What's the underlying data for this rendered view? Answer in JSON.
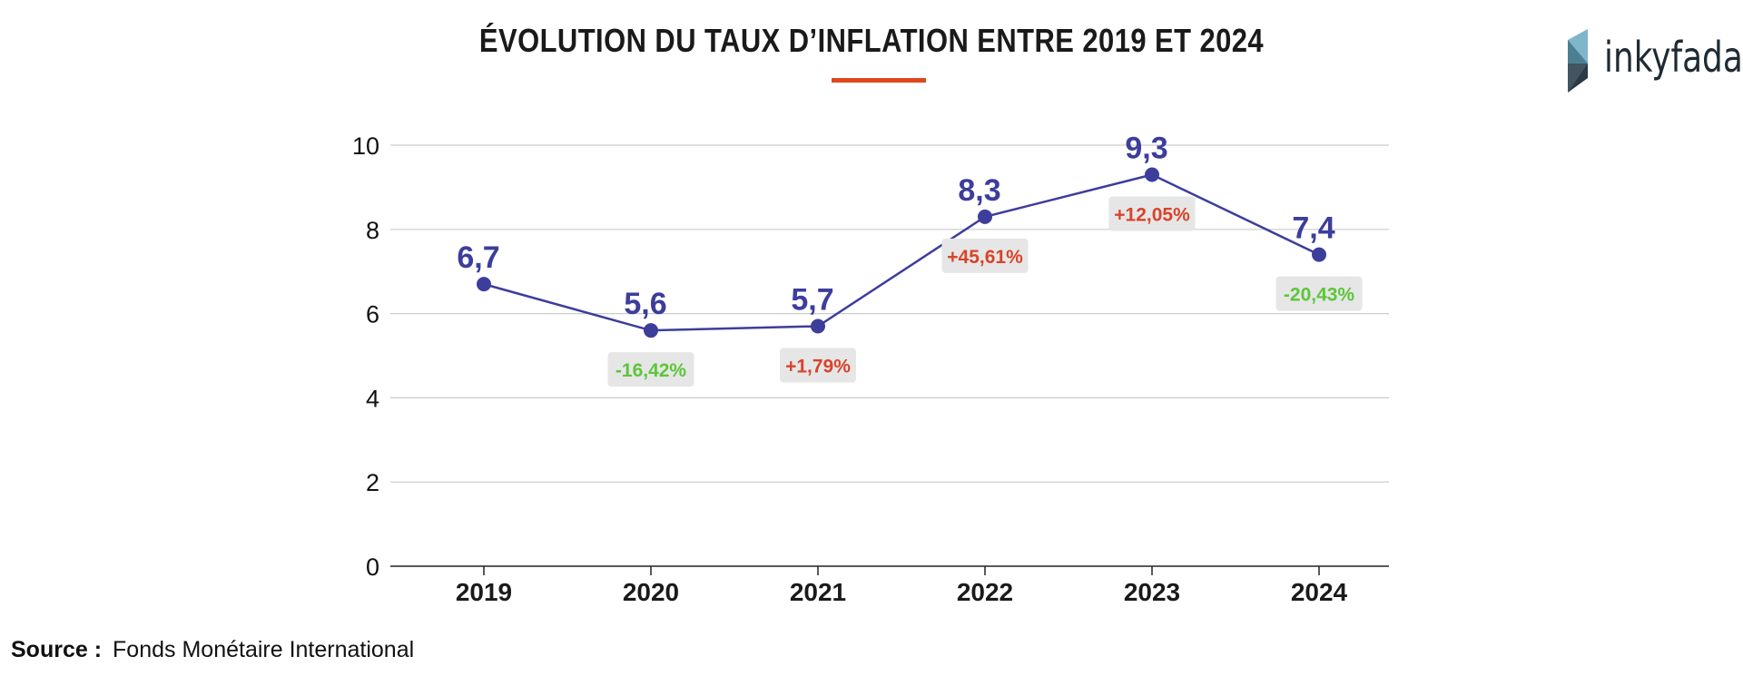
{
  "title": "ÉVOLUTION DU TAUX D’INFLATION ENTRE 2019 ET 2024",
  "logo": {
    "text": "inkyfada",
    "icon": "inkyfada-logo-icon"
  },
  "source": {
    "label": "Source :",
    "text": "Fonds Monétaire International"
  },
  "colors": {
    "line": "#3d3d9c",
    "increase": "#d9432a",
    "decrease": "#5cc63a",
    "badge": "#e6e6e6",
    "accent": "#e0471c",
    "grid": "#cccccc"
  },
  "chart_data": {
    "type": "line",
    "categories": [
      "2019",
      "2020",
      "2021",
      "2022",
      "2023",
      "2024"
    ],
    "values": [
      6.7,
      5.6,
      5.7,
      8.3,
      9.3,
      7.4
    ],
    "value_labels": [
      "6,7",
      "5,6",
      "5,7",
      "8,3",
      "9,3",
      "7,4"
    ],
    "changes": [
      null,
      "-16,42%",
      "+1,79%",
      "+45,61%",
      "+12,05%",
      "-20,43%"
    ],
    "y_ticks": [
      0,
      2,
      4,
      6,
      8,
      10
    ],
    "ylim": [
      0,
      10
    ],
    "grid": true,
    "xlabel": "",
    "ylabel": ""
  }
}
